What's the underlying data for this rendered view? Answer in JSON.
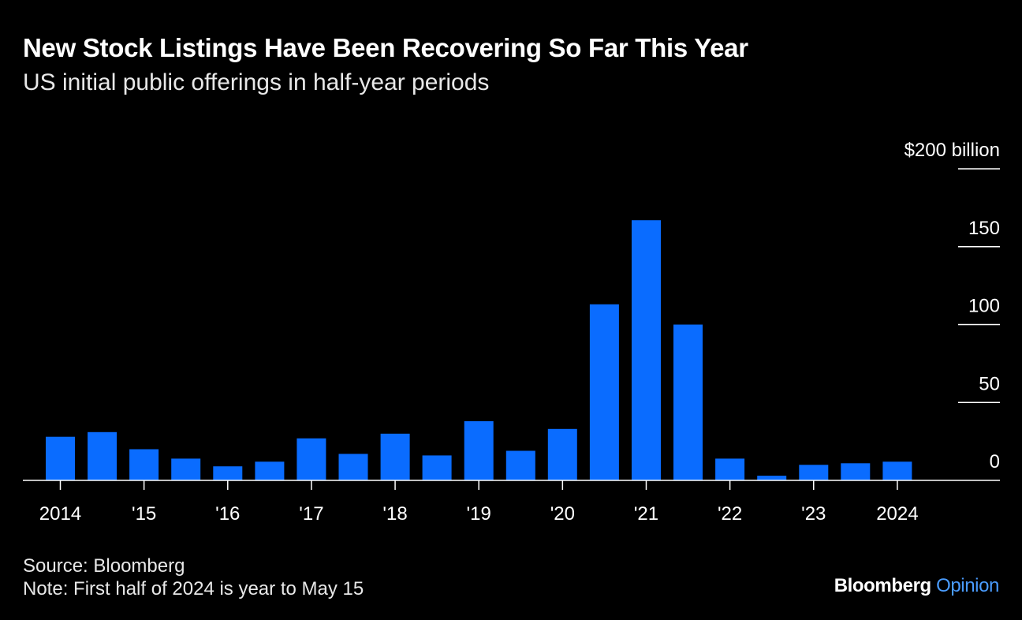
{
  "title": "New Stock Listings Have Been Recovering So Far This Year",
  "subtitle": "US initial public offerings in half-year periods",
  "footer": {
    "source": "Source: Bloomberg",
    "note": "Note: First half of 2024 is year to May 15"
  },
  "brand": {
    "name": "Bloomberg",
    "suffix": "Opinion"
  },
  "colors": {
    "bar": "#0a6cff",
    "background": "#000000",
    "text": "#ffffff",
    "brand_accent": "#4a9cff"
  },
  "chart_data": {
    "type": "bar",
    "title": "New Stock Listings Have Been Recovering So Far This Year",
    "subtitle": "US initial public offerings in half-year periods",
    "categories": [
      "2014 H1",
      "2014 H2",
      "2015 H1",
      "2015 H2",
      "2016 H1",
      "2016 H2",
      "2017 H1",
      "2017 H2",
      "2018 H1",
      "2018 H2",
      "2019 H1",
      "2019 H2",
      "2020 H1",
      "2020 H2",
      "2021 H1",
      "2021 H2",
      "2022 H1",
      "2022 H2",
      "2023 H1",
      "2023 H2",
      "2024 H1"
    ],
    "values": [
      28,
      31,
      20,
      14,
      9,
      12,
      27,
      17,
      30,
      16,
      38,
      19,
      33,
      113,
      167,
      100,
      14,
      3,
      10,
      11,
      12
    ],
    "ylim": [
      0,
      200
    ],
    "yticks": [
      {
        "value": 200,
        "label": "$200 billion"
      },
      {
        "value": 150,
        "label": "150"
      },
      {
        "value": 100,
        "label": "100"
      },
      {
        "value": 50,
        "label": "50"
      },
      {
        "value": 0,
        "label": "0"
      }
    ],
    "xticks": [
      {
        "index": 0,
        "label": "2014"
      },
      {
        "index": 2,
        "label": "'15"
      },
      {
        "index": 4,
        "label": "'16"
      },
      {
        "index": 6,
        "label": "'17"
      },
      {
        "index": 8,
        "label": "'18"
      },
      {
        "index": 10,
        "label": "'19"
      },
      {
        "index": 12,
        "label": "'20"
      },
      {
        "index": 14,
        "label": "'21"
      },
      {
        "index": 16,
        "label": "'22"
      },
      {
        "index": 18,
        "label": "'23"
      },
      {
        "index": 20,
        "label": "2024"
      }
    ],
    "grid": false,
    "legend": "none",
    "y_axis_position": "right"
  }
}
